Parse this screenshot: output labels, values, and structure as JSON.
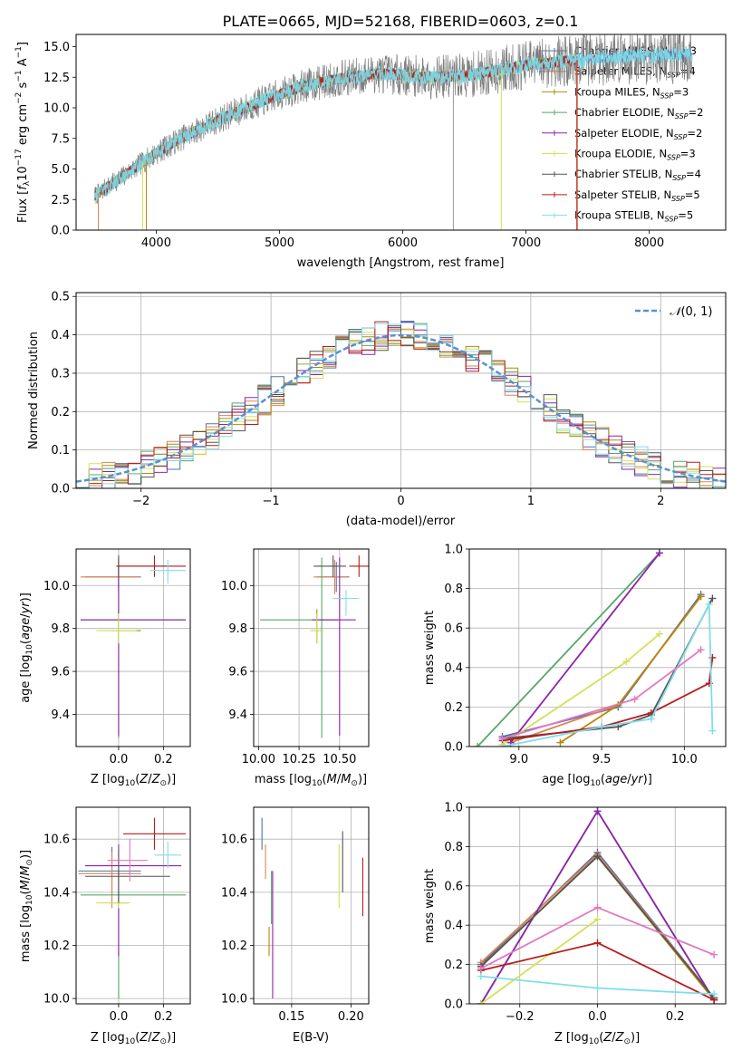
{
  "figure_title": "PLATE=0665, MJD=52168, FIBERID=0603, z=0.1",
  "series": [
    {
      "name": "Chabrier MILES, N$_{SSP}$=3",
      "label_main": "Chabrier MILES, N",
      "label_sub": "SSP",
      "label_end": "=3",
      "color": "#4c72b0"
    },
    {
      "name": "Salpeter MILES, N$_{SSP}$=4",
      "label_main": "Salpeter MILES, N",
      "label_sub": "SSP",
      "label_end": "=4",
      "color": "#dd8452"
    },
    {
      "name": "Kroupa MILES, N$_{SSP}$=3",
      "label_main": "Kroupa MILES, N",
      "label_sub": "SSP",
      "label_end": "=3",
      "color": "#b8860b"
    },
    {
      "name": "Chabrier ELODIE, N$_{SSP}$=2",
      "label_main": "Chabrier ELODIE, N",
      "label_sub": "SSP",
      "label_end": "=2",
      "color": "#55a868"
    },
    {
      "name": "Salpeter ELODIE, N$_{SSP}$=2",
      "label_main": "Salpeter ELODIE, N",
      "label_sub": "SSP",
      "label_end": "=2",
      "color": "#8e24aa"
    },
    {
      "name": "Kroupa ELODIE, N$_{SSP}$=3",
      "label_main": "Kroupa ELODIE, N",
      "label_sub": "SSP",
      "label_end": "=3",
      "color": "#d4e157"
    },
    {
      "name": "Chabrier STELIB, N$_{SSP}$=4",
      "label_main": "Chabrier STELIB, N",
      "label_sub": "SSP",
      "label_end": "=4",
      "color": "#555555"
    },
    {
      "name": "Salpeter STELIB, N$_{SSP}$=5",
      "label_main": "Salpeter STELIB, N",
      "label_sub": "SSP",
      "label_end": "=5",
      "color": "#b71c1c"
    },
    {
      "name": "Kroupa STELIB, N$_{SSP}$=5",
      "label_main": "Kroupa STELIB, N",
      "label_sub": "SSP",
      "label_end": "=5",
      "color": "#80deea"
    }
  ],
  "chart_data": [
    {
      "id": "spectrum",
      "type": "line",
      "title": "PLATE=0665, MJD=52168, FIBERID=0603, z=0.1",
      "xlabel": "wavelength [Angstrom, rest frame]",
      "ylabel": "Flux [f$_\\lambda$ 10$^{-17}$ erg cm$^{-2}$ s$^{-1}$ A$^{-1}$]",
      "xlim": [
        3350,
        8620
      ],
      "ylim": [
        0,
        16
      ],
      "xticks": [
        4000,
        5000,
        6000,
        7000,
        8000
      ],
      "yticks": [
        0.0,
        2.5,
        5.0,
        7.5,
        10.0,
        12.5,
        15.0
      ],
      "data_range_x": [
        3500,
        8350
      ],
      "continuum_anchors": {
        "x": [
          3500,
          3700,
          3900,
          4000,
          4200,
          4500,
          4800,
          5000,
          5200,
          5500,
          5800,
          6000,
          6200,
          6500,
          6800,
          7000,
          7300,
          7500,
          7800,
          8000,
          8350
        ],
        "y": [
          2.8,
          4.2,
          5.6,
          6.3,
          7.5,
          9.0,
          10.3,
          11.1,
          11.8,
          12.4,
          12.8,
          12.7,
          12.5,
          12.6,
          13.1,
          13.5,
          13.8,
          14.0,
          14.2,
          14.3,
          14.4
        ]
      },
      "legend": "right"
    },
    {
      "id": "residual_hist",
      "type": "histogram",
      "xlabel": "(data-model)/error",
      "ylabel": "Normed distribution",
      "xlim": [
        -2.5,
        2.5
      ],
      "ylim": [
        0,
        0.51
      ],
      "xticks": [
        -2,
        -1,
        0,
        1,
        2
      ],
      "yticks": [
        0.0,
        0.1,
        0.2,
        0.3,
        0.4,
        0.5
      ],
      "bin_width": 0.1,
      "bin_start": -2.5,
      "reference_curve": "$\\mathcal{N}(0,1)$",
      "reference_color": "#5b8fd4",
      "legend": "top-right"
    },
    {
      "id": "age_vs_Z",
      "type": "errorbar",
      "xlabel": "Z [log$_{10}$(Z/Z$_\\odot$)]",
      "ylabel": "age  [log$_{10}$(age/yr)]",
      "xlim": [
        -0.19,
        0.32
      ],
      "ylim": [
        9.25,
        10.17
      ],
      "xticks": [
        0.0,
        0.2
      ],
      "yticks": [
        9.4,
        9.6,
        9.8,
        10.0
      ],
      "points": [
        {
          "x": 0.0,
          "xerr": [
            0.15,
            0.1
          ],
          "y": 10.04,
          "yerr": [
            0.07,
            0.07
          ]
        },
        {
          "x": 0.0,
          "xerr": [
            0.17,
            0.1
          ],
          "y": 10.04,
          "yerr": [
            0.07,
            0.07
          ]
        },
        {
          "x": 0.0,
          "xerr": [
            0.03,
            0.1
          ],
          "y": 9.79,
          "yerr": [
            0.06,
            0.1
          ]
        },
        {
          "x": 0.0,
          "xerr": [
            0.17,
            0.3
          ],
          "y": 9.84,
          "yerr": [
            0.55,
            0.29
          ]
        },
        {
          "x": 0.0,
          "xerr": [
            0.17,
            0.3
          ],
          "y": 9.84,
          "yerr": [
            0.54,
            0.29
          ]
        },
        {
          "x": 0.0,
          "xerr": [
            0.1,
            0.08
          ],
          "y": 9.79,
          "yerr": [
            0.06,
            0.08
          ]
        },
        {
          "x": 0.0,
          "xerr": [
            0.0,
            0.22
          ],
          "y": 10.09,
          "yerr": [
            0.05,
            0.05
          ]
        },
        {
          "x": 0.16,
          "xerr": [
            0.17,
            0.14
          ],
          "y": 10.09,
          "yerr": [
            0.05,
            0.05
          ]
        },
        {
          "x": 0.22,
          "xerr": [
            0.08,
            0.08
          ],
          "y": 10.07,
          "yerr": [
            0.06,
            0.05
          ]
        }
      ]
    },
    {
      "id": "age_vs_mass",
      "type": "errorbar",
      "xlabel": "mass [log$_{10}$(M/M$_\\odot$)]",
      "ylabel": "",
      "xlim": [
        9.97,
        10.68
      ],
      "ylim": [
        9.25,
        10.17
      ],
      "xticks": [
        10.0,
        10.25,
        10.5
      ],
      "xticklabels": [
        "10.00",
        "10.25",
        "10.50"
      ],
      "yticks": [
        9.4,
        9.6,
        9.8,
        10.0
      ],
      "points": [
        {
          "x": 10.48,
          "xerr": [
            0.12,
            0.08
          ],
          "y": 10.04,
          "yerr": [
            0.07,
            0.07
          ]
        },
        {
          "x": 10.47,
          "xerr": [
            0.13,
            0.08
          ],
          "y": 10.04,
          "yerr": [
            0.08,
            0.08
          ]
        },
        {
          "x": 10.36,
          "xerr": [
            0.04,
            0.04
          ],
          "y": 9.79,
          "yerr": [
            0.06,
            0.1
          ]
        },
        {
          "x": 10.39,
          "xerr": [
            0.38,
            0.1
          ],
          "y": 9.84,
          "yerr": [
            0.55,
            0.29
          ]
        },
        {
          "x": 10.5,
          "xerr": [
            0.17,
            0.1
          ],
          "y": 9.84,
          "yerr": [
            0.54,
            0.29
          ]
        },
        {
          "x": 10.36,
          "xerr": [
            0.04,
            0.04
          ],
          "y": 9.79,
          "yerr": [
            0.06,
            0.08
          ]
        },
        {
          "x": 10.46,
          "xerr": [
            0.12,
            0.08
          ],
          "y": 10.09,
          "yerr": [
            0.05,
            0.05
          ]
        },
        {
          "x": 10.62,
          "xerr": [
            0.06,
            0.06
          ],
          "y": 10.09,
          "yerr": [
            0.05,
            0.05
          ]
        },
        {
          "x": 10.54,
          "xerr": [
            0.08,
            0.08
          ],
          "y": 9.94,
          "yerr": [
            0.08,
            0.04
          ]
        }
      ]
    },
    {
      "id": "weight_vs_age",
      "type": "line",
      "xlabel": "age  [log$_{10}$(age/yr)]",
      "ylabel": "mass weight",
      "xlim": [
        8.7,
        10.25
      ],
      "ylim": [
        0,
        1.0
      ],
      "xticks": [
        9.0,
        9.5,
        10.0
      ],
      "yticks": [
        0.0,
        0.2,
        0.4,
        0.6,
        0.8,
        1.0
      ],
      "series_points": [
        {
          "x": [
            8.9,
            9.6,
            10.1
          ],
          "y": [
            0.05,
            0.2,
            0.77
          ]
        },
        {
          "x": [
            8.95,
            9.6,
            10.1
          ],
          "y": [
            0.02,
            0.21,
            0.76
          ]
        },
        {
          "x": [
            9.25,
            9.6,
            10.1
          ],
          "y": [
            0.02,
            0.21,
            0.76
          ]
        },
        {
          "x": [
            8.75,
            9.85
          ],
          "y": [
            0.0,
            0.98
          ]
        },
        {
          "x": [
            8.95,
            9.85
          ],
          "y": [
            0.02,
            0.98
          ]
        },
        {
          "x": [
            8.9,
            9.65,
            9.85
          ],
          "y": [
            0.01,
            0.43,
            0.57
          ]
        },
        {
          "x": [
            8.9,
            9.6,
            9.8,
            10.17
          ],
          "y": [
            0.04,
            0.1,
            0.16,
            0.75
          ]
        },
        {
          "x": [
            8.9,
            9.5,
            9.8,
            10.15,
            10.17
          ],
          "y": [
            0.03,
            0.1,
            0.17,
            0.32,
            0.45
          ]
        },
        {
          "x": [
            8.9,
            9.5,
            9.8,
            10.15,
            10.17
          ],
          "y": [
            0.0,
            0.1,
            0.14,
            0.72,
            0.08
          ]
        }
      ],
      "pink_series": {
        "x": [
          8.9,
          9.7,
          10.1
        ],
        "y": [
          0.04,
          0.24,
          0.49
        ],
        "color": "#e377c2"
      }
    },
    {
      "id": "mass_vs_Z",
      "type": "errorbar",
      "xlabel": "Z [log$_{10}$(Z/Z$_\\odot$)]",
      "ylabel": "mass [log$_{10}$(M/M$_\\odot$)]",
      "xlim": [
        -0.19,
        0.32
      ],
      "ylim": [
        9.98,
        10.72
      ],
      "xticks": [
        0.0,
        0.2
      ],
      "yticks": [
        10.0,
        10.2,
        10.4,
        10.6
      ],
      "points": [
        {
          "x": -0.03,
          "xerr": [
            0.15,
            0.13
          ],
          "y": 10.48,
          "yerr": [
            0.09,
            0.09
          ]
        },
        {
          "x": -0.03,
          "xerr": [
            0.15,
            0.13
          ],
          "y": 10.47,
          "yerr": [
            0.13,
            0.08
          ]
        },
        {
          "x": 0.0,
          "xerr": [
            0.04,
            0.04
          ],
          "y": 10.36,
          "yerr": [
            0.02,
            0.02
          ]
        },
        {
          "x": 0.0,
          "xerr": [
            0.17,
            0.3
          ],
          "y": 10.39,
          "yerr": [
            0.39,
            0.09
          ]
        },
        {
          "x": 0.0,
          "xerr": [
            0.15,
            0.28
          ],
          "y": 10.5,
          "yerr": [
            0.34,
            0.08
          ]
        },
        {
          "x": 0.0,
          "xerr": [
            0.1,
            0.05
          ],
          "y": 10.36,
          "yerr": [
            0.02,
            0.02
          ]
        },
        {
          "x": 0.0,
          "xerr": [
            0.15,
            0.23
          ],
          "y": 10.46,
          "yerr": [
            0.1,
            0.1
          ]
        },
        {
          "x": 0.16,
          "xerr": [
            0.14,
            0.14
          ],
          "y": 10.62,
          "yerr": [
            0.06,
            0.06
          ]
        },
        {
          "x": 0.22,
          "xerr": [
            0.06,
            0.06
          ],
          "y": 10.54,
          "yerr": [
            0.05,
            0.05
          ]
        },
        {
          "x": 0.05,
          "xerr": [
            0.1,
            0.08
          ],
          "y": 10.52,
          "yerr": [
            0.08,
            0.08
          ]
        }
      ]
    },
    {
      "id": "mass_vs_ebv",
      "type": "errorbar",
      "xlabel": "E(B-V)",
      "ylabel": "",
      "xlim": [
        0.118,
        0.215
      ],
      "ylim": [
        9.98,
        10.72
      ],
      "xticks": [
        0.15,
        0.2
      ],
      "yticks": [
        10.0,
        10.2,
        10.4,
        10.6
      ],
      "points": [
        {
          "x": 0.125,
          "y": 10.62,
          "yerr": [
            0.06,
            0.06
          ]
        },
        {
          "x": 0.128,
          "y": 10.52,
          "yerr": [
            0.07,
            0.06
          ]
        },
        {
          "x": 0.131,
          "y": 10.22,
          "yerr": [
            0.06,
            0.05
          ]
        },
        {
          "x": 0.133,
          "y": 10.38,
          "yerr": [
            0.1,
            0.1
          ]
        },
        {
          "x": 0.134,
          "y": 10.2,
          "yerr": [
            0.2,
            0.28
          ]
        },
        {
          "x": 0.19,
          "y": 10.46,
          "yerr": [
            0.12,
            0.12
          ]
        },
        {
          "x": 0.193,
          "y": 10.5,
          "yerr": [
            0.1,
            0.13
          ]
        },
        {
          "x": 0.21,
          "y": 10.41,
          "yerr": [
            0.1,
            0.12
          ]
        }
      ]
    },
    {
      "id": "weight_vs_Z",
      "type": "line",
      "xlabel": "Z [log$_{10}$(Z/Z$_\\odot$)]",
      "ylabel": "mass weight",
      "xlim": [
        -0.33,
        0.33
      ],
      "ylim": [
        0,
        1.0
      ],
      "xticks": [
        -0.2,
        0.0,
        0.2
      ],
      "yticks": [
        0.0,
        0.2,
        0.4,
        0.6,
        0.8,
        1.0
      ],
      "series_points": [
        {
          "x": [
            -0.3,
            0.0,
            0.3
          ],
          "y": [
            0.2,
            0.77,
            0.03
          ]
        },
        {
          "x": [
            -0.3,
            0.0,
            0.3
          ],
          "y": [
            0.21,
            0.76,
            0.03
          ]
        },
        {
          "x": [
            -0.3,
            0.0,
            0.3
          ],
          "y": [
            0.19,
            0.75,
            0.02
          ]
        },
        {
          "x": [
            -0.3,
            0.0,
            0.3
          ],
          "y": [
            0.0,
            0.98,
            0.02
          ]
        },
        {
          "x": [
            -0.3,
            0.0,
            0.3
          ],
          "y": [
            0.0,
            0.98,
            0.02
          ]
        },
        {
          "x": [
            -0.3,
            0.0
          ],
          "y": [
            0.0,
            0.43
          ]
        },
        {
          "x": [
            -0.3,
            0.0,
            0.3
          ],
          "y": [
            0.19,
            0.75,
            0.03
          ]
        },
        {
          "x": [
            -0.3,
            0.0,
            0.3
          ],
          "y": [
            0.17,
            0.31,
            0.02
          ]
        },
        {
          "x": [
            -0.3,
            0.0,
            0.3
          ],
          "y": [
            0.14,
            0.08,
            0.05
          ]
        }
      ],
      "pink_series": {
        "x": [
          -0.3,
          0.0,
          0.3
        ],
        "y": [
          0.18,
          0.49,
          0.25
        ],
        "color": "#e377c2"
      }
    }
  ]
}
